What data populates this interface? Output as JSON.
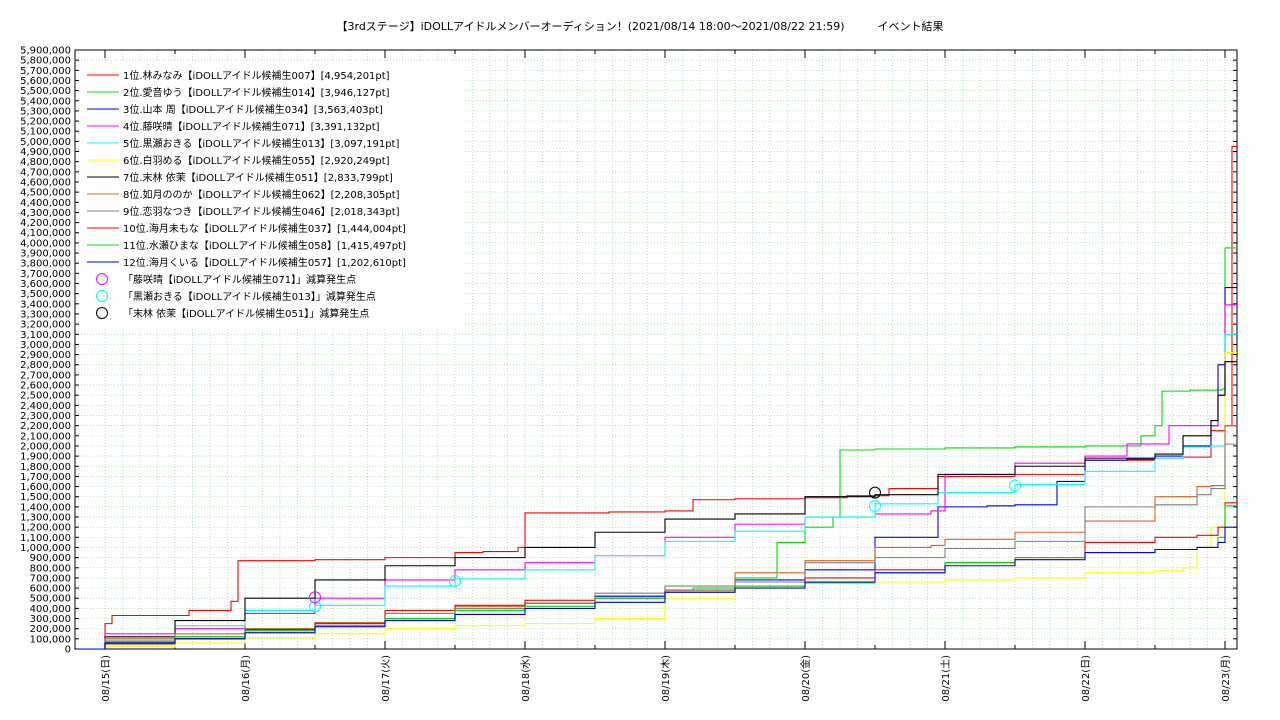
{
  "chart_data": {
    "type": "line",
    "title": "【3rdステージ】iDOLLアイドルメンバーオーディション！(2021/08/14 18:00～2021/08/22 21:59)　　　イベント結果",
    "xlabel": "",
    "ylabel": "",
    "x_ticks": [
      "08/15(日)",
      "08/16(月)",
      "08/17(火)",
      "08/18(水)",
      "08/19(木)",
      "08/20(金)",
      "08/21(土)",
      "08/22(日)",
      "08/23(月)"
    ],
    "xlim": [
      0,
      8.1
    ],
    "ylim": [
      0,
      5900000
    ],
    "y_tick_step": 100000,
    "grid": true,
    "legend_position": "top-left",
    "series": [
      {
        "name": "1位.林みなみ【iDOLLアイドル候補生007】[4,954,201pt]",
        "color": "#ff0000",
        "x": [
          -0.2,
          0,
          0.05,
          0.3,
          0.6,
          0.9,
          0.95,
          1.5,
          2,
          2.5,
          2.7,
          2.95,
          3,
          3.6,
          4,
          4.2,
          4.5,
          5,
          5.3,
          5.6,
          5.95,
          6.5,
          7,
          7.5,
          7.7,
          7.9,
          8,
          8.05,
          8.1
        ],
        "y": [
          0,
          250000,
          330000,
          330000,
          380000,
          470000,
          870000,
          880000,
          900000,
          950000,
          960000,
          1000000,
          1340000,
          1350000,
          1360000,
          1470000,
          1480000,
          1490000,
          1510000,
          1580000,
          1700000,
          1720000,
          1860000,
          1880000,
          1890000,
          2150000,
          2200000,
          4950000,
          4954201
        ]
      },
      {
        "name": "2位.愛音ゆう【iDOLLアイドル候補生014】[3,946,127pt]",
        "color": "#00e000",
        "x": [
          -0.2,
          0,
          0.5,
          1,
          1.5,
          2,
          2.5,
          3,
          3.5,
          4,
          4.2,
          4.5,
          4.8,
          5,
          5.2,
          5.25,
          5.5,
          6,
          6.5,
          7,
          7.4,
          7.5,
          7.55,
          7.75,
          7.98,
          8,
          8.1
        ],
        "y": [
          0,
          100000,
          120000,
          200000,
          260000,
          300000,
          400000,
          450000,
          520000,
          580000,
          600000,
          700000,
          1050000,
          1200000,
          1300000,
          1960000,
          1970000,
          1980000,
          1990000,
          2000000,
          2100000,
          2200000,
          2540000,
          2550000,
          2560000,
          3950000,
          3946127
        ]
      },
      {
        "name": "3位.山本 周【iDOLLアイドル候補生034】[3,563,403pt]",
        "color": "#0000ff",
        "x": [
          -0.2,
          0,
          0.5,
          1,
          1.5,
          2,
          2.5,
          3,
          3.5,
          4,
          4.5,
          5,
          5.5,
          5.95,
          6.3,
          6.5,
          6.8,
          7,
          7.3,
          7.5,
          7.7,
          7.9,
          7.95,
          8,
          8.1
        ],
        "y": [
          0,
          60000,
          100000,
          190000,
          250000,
          300000,
          380000,
          450000,
          520000,
          580000,
          680000,
          780000,
          1100000,
          1400000,
          1410000,
          1420000,
          1650000,
          1860000,
          1870000,
          1900000,
          2000000,
          2200000,
          2800000,
          3560000,
          3563403
        ]
      },
      {
        "name": "4位.藤咲晴【iDOLLアイドル候補生071】[3,391,132pt]",
        "color": "#ff00ff",
        "x": [
          -0.2,
          0,
          0.5,
          1,
          1.5,
          2,
          2.5,
          3,
          3.5,
          4,
          4.5,
          5,
          5.5,
          5.9,
          6,
          6.5,
          7,
          7.3,
          7.6,
          7.95,
          8,
          8.1
        ],
        "y": [
          0,
          150000,
          200000,
          350000,
          500000,
          680000,
          780000,
          850000,
          920000,
          1100000,
          1230000,
          1300000,
          1330000,
          1360000,
          1720000,
          1830000,
          1900000,
          2020000,
          2200000,
          2500000,
          3390000,
          3391132
        ]
      },
      {
        "name": "5位.黒瀬おきる【iDOLLアイドル候補生013】[3,097,191pt]",
        "color": "#00ffff",
        "x": [
          -0.2,
          0,
          0.5,
          1,
          1.5,
          2,
          2.5,
          3,
          3.5,
          4,
          4.5,
          5,
          5.5,
          5.95,
          6.5,
          7,
          7.5,
          7.7,
          7.9,
          8,
          8.1
        ],
        "y": [
          0,
          100000,
          230000,
          380000,
          430000,
          620000,
          690000,
          780000,
          920000,
          1060000,
          1160000,
          1300000,
          1430000,
          1540000,
          1620000,
          1750000,
          1880000,
          1990000,
          2000000,
          3100000,
          3097191
        ]
      },
      {
        "name": "6位.白羽める【iDOLLアイドル候補生055】[2,920,249pt]",
        "color": "#ffff00",
        "x": [
          -0.2,
          0,
          0.5,
          1,
          1.5,
          2,
          2.5,
          3,
          3.5,
          4,
          4.5,
          5,
          5.5,
          6,
          6.5,
          7,
          7.5,
          7.7,
          7.8,
          7.9,
          8,
          8.1
        ],
        "y": [
          0,
          20000,
          60000,
          110000,
          150000,
          200000,
          230000,
          250000,
          300000,
          500000,
          600000,
          650000,
          660000,
          680000,
          700000,
          750000,
          770000,
          800000,
          1000000,
          1200000,
          2920000,
          2920249
        ]
      },
      {
        "name": "7位.末林 依茉【iDOLLアイドル候補生051】[2,833,799pt]",
        "color": "#000000",
        "x": [
          -0.2,
          0,
          0.5,
          1,
          1.5,
          2,
          2.5,
          3,
          3.5,
          4,
          4.5,
          5,
          5.5,
          5.95,
          6.5,
          7,
          7.5,
          7.7,
          7.9,
          7.95,
          8,
          8.1
        ],
        "y": [
          0,
          120000,
          280000,
          500000,
          680000,
          820000,
          900000,
          1000000,
          1150000,
          1280000,
          1330000,
          1500000,
          1520000,
          1720000,
          1800000,
          1880000,
          1920000,
          2100000,
          2250000,
          2500000,
          2830000,
          2833799
        ]
      },
      {
        "name": "8位.如月ののか【iDOLLアイドル候補生062】[2,208,305pt]",
        "color": "#e06020",
        "x": [
          -0.2,
          0,
          0.5,
          1,
          1.5,
          2,
          2.5,
          3,
          3.5,
          4,
          4.5,
          5,
          5.5,
          5.9,
          6,
          6.5,
          7,
          7.5,
          7.8,
          7.9,
          8,
          8.1
        ],
        "y": [
          0,
          100000,
          150000,
          200000,
          260000,
          350000,
          420000,
          450000,
          500000,
          580000,
          750000,
          870000,
          1000000,
          1020000,
          1080000,
          1150000,
          1260000,
          1500000,
          1600000,
          1610000,
          2200000,
          2208305
        ]
      },
      {
        "name": "9位.恋羽なつき【iDOLLアイドル候補生046】[2,018,343pt]",
        "color": "#808080",
        "x": [
          -0.2,
          0,
          0.5,
          1,
          1.5,
          2,
          2.5,
          3,
          3.5,
          4,
          4.5,
          5,
          5.5,
          6,
          6.5,
          7,
          7.5,
          7.8,
          7.9,
          8,
          8.1
        ],
        "y": [
          0,
          80000,
          120000,
          180000,
          250000,
          300000,
          400000,
          450000,
          550000,
          620000,
          660000,
          850000,
          900000,
          990000,
          1060000,
          1400000,
          1420000,
          1520000,
          1580000,
          2018000,
          2018343
        ]
      },
      {
        "name": "10位.海月未もな【iDOLLアイドル候補生037】[1,444,004pt]",
        "color": "#ff0000",
        "x": [
          -0.2,
          0,
          0.5,
          1,
          1.5,
          2,
          2.5,
          3,
          3.5,
          4,
          4.5,
          5,
          5.5,
          6,
          6.5,
          7,
          7.5,
          7.8,
          7.95,
          8,
          8.1
        ],
        "y": [
          0,
          50000,
          100000,
          160000,
          250000,
          380000,
          430000,
          480000,
          500000,
          560000,
          620000,
          700000,
          780000,
          850000,
          900000,
          1050000,
          1100000,
          1120000,
          1200000,
          1440000,
          1444004
        ]
      },
      {
        "name": "11位.水瀬ひまな【iDOLLアイドル候補生058】[1,415,497pt]",
        "color": "#00e000",
        "x": [
          -0.2,
          0,
          0.5,
          1,
          1.5,
          2,
          2.5,
          3,
          3.5,
          4,
          4.5,
          5,
          5.5,
          6,
          6.5,
          7,
          7.5,
          7.8,
          7.95,
          8,
          8.1
        ],
        "y": [
          0,
          70000,
          120000,
          180000,
          230000,
          300000,
          380000,
          420000,
          500000,
          560000,
          620000,
          650000,
          750000,
          850000,
          900000,
          950000,
          980000,
          1000000,
          1100000,
          1410000,
          1415497
        ]
      },
      {
        "name": "12位.海月くいる【iDOLLアイドル候補生057】[1,202,610pt]",
        "color": "#0000ff",
        "x": [
          -0.2,
          0,
          0.5,
          1,
          1.5,
          2,
          2.5,
          3,
          3.5,
          4,
          4.5,
          5,
          5.5,
          6,
          6.5,
          7,
          7.5,
          7.8,
          7.95,
          8,
          8.1
        ],
        "y": [
          0,
          60000,
          100000,
          160000,
          220000,
          280000,
          340000,
          400000,
          460000,
          560000,
          600000,
          660000,
          750000,
          820000,
          880000,
          950000,
          980000,
          1000000,
          1050000,
          1200000,
          1202610
        ]
      }
    ],
    "markers": [
      {
        "name": "「藤咲晴【iDOLLアイドル候補生071】」減算発生点",
        "color": "#ff00ff",
        "points": [
          {
            "x": 1.5,
            "y": 510000
          }
        ]
      },
      {
        "name": "「黒瀬おきる【iDOLLアイドル候補生013】」減算発生点",
        "color": "#00ffff",
        "points": [
          {
            "x": 1.5,
            "y": 420000
          },
          {
            "x": 2.5,
            "y": 670000
          },
          {
            "x": 5.5,
            "y": 1410000
          },
          {
            "x": 6.5,
            "y": 1610000
          }
        ]
      },
      {
        "name": "「末林 依茉【iDOLLアイドル候補生051】」減算発生点",
        "color": "#000000",
        "points": [
          {
            "x": 5.5,
            "y": 1540000
          }
        ]
      }
    ]
  }
}
